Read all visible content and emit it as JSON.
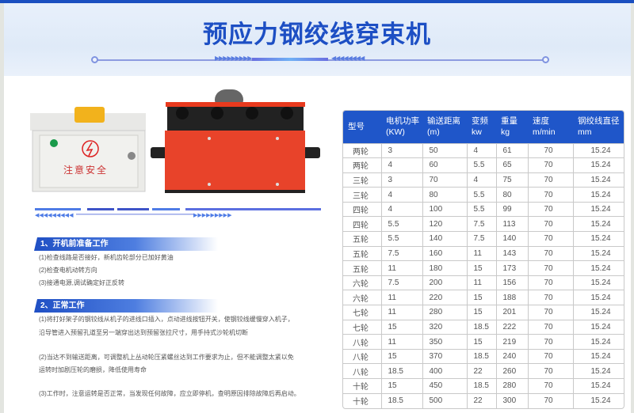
{
  "header": {
    "title": "预应力钢绞线穿束机"
  },
  "images": {
    "control_box_label": "注意安全"
  },
  "colors": {
    "brand_blue": "#1f56c9",
    "machine_red": "#e8432a"
  },
  "sections": [
    {
      "heading": "1、开机前准备工作",
      "items": [
        "(1)检查线路是否接好，新机齿轮部分已加好黄油",
        "(2)检查电机动转方向",
        "(3)接通电源,调试确定好正反转"
      ]
    },
    {
      "heading": "2、正常工作",
      "items": [
        "(1)将打好架子的钢铰线从机子的进线口插入，点动进线按钮开关，使钢铰线缓慢穿入机子，",
        "沿导管进入预留孔道至另一端穿出达到预留张拉尺寸，用手持式沙轮机切断",
        "(2)当达不到输送距离，可调整机上丛动轮压紧螺丝达到工作要求为止，但不能调整太紧以免",
        "运转时加剧压轮的磨损，降低使用寿命",
        "(3)工作时，注意运转是否正常，当发现任何故障，应立即停机，查明原因排除故障后再启动。"
      ]
    }
  ],
  "spec_table": {
    "headers": [
      [
        "型号",
        ""
      ],
      [
        "电机功率",
        "(KW)"
      ],
      [
        "输送距离",
        "(m)"
      ],
      [
        "变频",
        "kw"
      ],
      [
        "重量",
        "kg"
      ],
      [
        "速度",
        "m/min"
      ],
      [
        "钢绞线直径",
        "mm"
      ]
    ],
    "rows": [
      [
        "两轮",
        "3",
        "50",
        "4",
        "61",
        "70",
        "15.24"
      ],
      [
        "两轮",
        "4",
        "60",
        "5.5",
        "65",
        "70",
        "15.24"
      ],
      [
        "三轮",
        "3",
        "70",
        "4",
        "75",
        "70",
        "15.24"
      ],
      [
        "三轮",
        "4",
        "80",
        "5.5",
        "80",
        "70",
        "15.24"
      ],
      [
        "四轮",
        "4",
        "100",
        "5.5",
        "99",
        "70",
        "15.24"
      ],
      [
        "四轮",
        "5.5",
        "120",
        "7.5",
        "113",
        "70",
        "15.24"
      ],
      [
        "五轮",
        "5.5",
        "140",
        "7.5",
        "140",
        "70",
        "15.24"
      ],
      [
        "五轮",
        "7.5",
        "160",
        "11",
        "143",
        "70",
        "15.24"
      ],
      [
        "五轮",
        "11",
        "180",
        "15",
        "173",
        "70",
        "15.24"
      ],
      [
        "六轮",
        "7.5",
        "200",
        "11",
        "156",
        "70",
        "15.24"
      ],
      [
        "六轮",
        "11",
        "220",
        "15",
        "188",
        "70",
        "15.24"
      ],
      [
        "七轮",
        "11",
        "280",
        "15",
        "201",
        "70",
        "15.24"
      ],
      [
        "七轮",
        "15",
        "320",
        "18.5",
        "222",
        "70",
        "15.24"
      ],
      [
        "八轮",
        "11",
        "350",
        "15",
        "219",
        "70",
        "15.24"
      ],
      [
        "八轮",
        "15",
        "370",
        "18.5",
        "240",
        "70",
        "15.24"
      ],
      [
        "八轮",
        "18.5",
        "400",
        "22",
        "260",
        "70",
        "15.24"
      ],
      [
        "十轮",
        "15",
        "450",
        "18.5",
        "280",
        "70",
        "15.24"
      ],
      [
        "十轮",
        "18.5",
        "500",
        "22",
        "300",
        "70",
        "15.24"
      ]
    ]
  }
}
